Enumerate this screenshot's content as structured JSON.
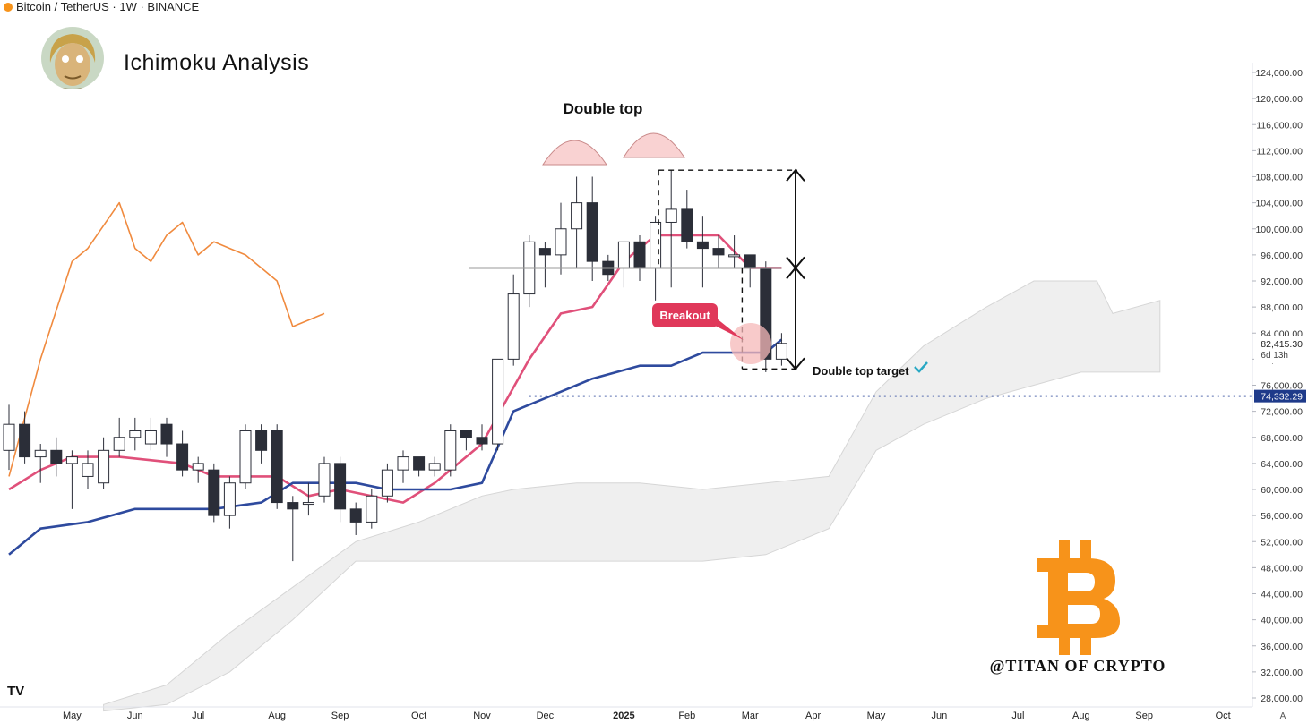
{
  "header": {
    "symbol_line": "Bitcoin / TetherUS · 1W · BINANCE"
  },
  "title": "Ichimoku Analysis",
  "watermark": {
    "handle": "@TITAN OF CRYPTO",
    "logo": "bitcoin-logo"
  },
  "tradingview_logo": "TV",
  "annotations": {
    "double_top": "Double top",
    "breakout": "Breakout",
    "target": "Double top target",
    "check_icon": "checkmark-icon"
  },
  "colors": {
    "tenkan": "#e0507a",
    "kijun": "#2e4a9e",
    "chikou": "#f08a3e",
    "cloud": "#efefef",
    "bear": "#2b2e38",
    "breakout_badge": "#e0385a",
    "btc_orange": "#f7931a",
    "price_badge": "#1e3a8a"
  },
  "chart_data": {
    "type": "candlestick",
    "timeframe": "1W",
    "exchange": "BINANCE",
    "ylim": [
      26000,
      126000
    ],
    "y_ticks": [
      "124,000.00",
      "120,000.00",
      "116,000.00",
      "112,000.00",
      "108,000.00",
      "104,000.00",
      "100,000.00",
      "96,000.00",
      "92,000.00",
      "88,000.00",
      "84,000.00",
      "80,000.00",
      "76,000.00",
      "72,000.00",
      "68,000.00",
      "64,000.00",
      "60,000.00",
      "56,000.00",
      "52,000.00",
      "48,000.00",
      "44,000.00",
      "40,000.00",
      "36,000.00",
      "32,000.00",
      "28,000.00"
    ],
    "x_labels": [
      {
        "label": "May",
        "week": 4
      },
      {
        "label": "Jun",
        "week": 8
      },
      {
        "label": "Jul",
        "week": 12
      },
      {
        "label": "Aug",
        "week": 17
      },
      {
        "label": "Sep",
        "week": 21
      },
      {
        "label": "Oct",
        "week": 26
      },
      {
        "label": "Nov",
        "week": 30
      },
      {
        "label": "Dec",
        "week": 34
      },
      {
        "label": "2025",
        "week": 39
      },
      {
        "label": "Feb",
        "week": 43
      },
      {
        "label": "Mar",
        "week": 47
      },
      {
        "label": "Apr",
        "week": 51
      },
      {
        "label": "May",
        "week": 55
      },
      {
        "label": "Jun",
        "week": 59
      },
      {
        "label": "Jul",
        "week": 64
      },
      {
        "label": "Aug",
        "week": 68
      },
      {
        "label": "Sep",
        "week": 72
      },
      {
        "label": "Oct",
        "week": 77
      }
    ],
    "current_price": "82,415.30",
    "countdown": "6d 13h",
    "level_price": "74,332.29",
    "candles": [
      [
        0,
        66000,
        73000,
        63000,
        70000
      ],
      [
        1,
        70000,
        72000,
        64000,
        65000
      ],
      [
        2,
        65000,
        67000,
        61000,
        66000
      ],
      [
        3,
        66000,
        68000,
        62000,
        64000
      ],
      [
        4,
        64000,
        66000,
        57000,
        65000
      ],
      [
        5,
        62000,
        66000,
        60000,
        64000
      ],
      [
        6,
        61000,
        68000,
        60000,
        66000
      ],
      [
        7,
        66000,
        71000,
        65000,
        68000
      ],
      [
        8,
        68000,
        71000,
        66000,
        69000
      ],
      [
        9,
        67000,
        71000,
        66000,
        69000
      ],
      [
        10,
        70000,
        71000,
        65000,
        67000
      ],
      [
        11,
        67000,
        69000,
        62000,
        63000
      ],
      [
        12,
        63000,
        65000,
        61000,
        64000
      ],
      [
        13,
        63000,
        64000,
        55000,
        56000
      ],
      [
        14,
        56000,
        62000,
        54000,
        61000
      ],
      [
        15,
        61000,
        70000,
        60000,
        69000
      ],
      [
        16,
        69000,
        70000,
        64000,
        66000
      ],
      [
        17,
        69000,
        70000,
        57000,
        58000
      ],
      [
        18,
        58000,
        59000,
        49000,
        57000
      ],
      [
        19,
        58000,
        61000,
        56000,
        58000
      ],
      [
        20,
        59000,
        65000,
        58000,
        64000
      ],
      [
        21,
        64000,
        65000,
        55000,
        57000
      ],
      [
        22,
        57000,
        58000,
        53000,
        55000
      ],
      [
        23,
        55000,
        60000,
        54000,
        59000
      ],
      [
        24,
        59000,
        64000,
        58000,
        63000
      ],
      [
        25,
        63000,
        66000,
        61000,
        65000
      ],
      [
        26,
        65000,
        65000,
        62000,
        63000
      ],
      [
        27,
        63000,
        65000,
        62000,
        64000
      ],
      [
        28,
        63000,
        70000,
        62000,
        69000
      ],
      [
        29,
        69000,
        69000,
        66000,
        68000
      ],
      [
        30,
        68000,
        70000,
        66000,
        67000
      ],
      [
        31,
        67000,
        80000,
        66000,
        80000
      ],
      [
        32,
        80000,
        93000,
        79000,
        90000
      ],
      [
        33,
        90000,
        99000,
        88000,
        98000
      ],
      [
        34,
        97000,
        98000,
        91000,
        96000
      ],
      [
        35,
        96000,
        104000,
        93000,
        100000
      ],
      [
        36,
        100000,
        108000,
        94000,
        104000
      ],
      [
        37,
        104000,
        108000,
        92000,
        95000
      ],
      [
        38,
        95000,
        96000,
        92000,
        93000
      ],
      [
        39,
        94000,
        98000,
        91000,
        98000
      ],
      [
        40,
        98000,
        99000,
        92000,
        94000
      ],
      [
        41,
        94000,
        102000,
        89000,
        101000
      ],
      [
        42,
        101000,
        109000,
        91000,
        103000
      ],
      [
        43,
        103000,
        106000,
        97000,
        98000
      ],
      [
        44,
        98000,
        102000,
        91000,
        97000
      ],
      [
        45,
        97000,
        99000,
        94000,
        96000
      ],
      [
        46,
        96000,
        99000,
        94000,
        96000
      ],
      [
        47,
        96000,
        96000,
        91000,
        94000
      ],
      [
        48,
        94000,
        95000,
        78000,
        80000
      ],
      [
        49,
        80000,
        84000,
        79000,
        82415
      ]
    ],
    "series": [
      {
        "name": "Tenkan",
        "points": [
          [
            0,
            60000
          ],
          [
            2,
            63000
          ],
          [
            4,
            65000
          ],
          [
            7,
            65000
          ],
          [
            11,
            64000
          ],
          [
            13,
            62000
          ],
          [
            17,
            62000
          ],
          [
            19,
            59000
          ],
          [
            21,
            60000
          ],
          [
            25,
            58000
          ],
          [
            27,
            61000
          ],
          [
            30,
            67000
          ],
          [
            33,
            80000
          ],
          [
            35,
            87000
          ],
          [
            37,
            88000
          ],
          [
            39,
            95000
          ],
          [
            41,
            99000
          ],
          [
            45,
            99000
          ],
          [
            47,
            94000
          ],
          [
            49,
            94000
          ]
        ]
      },
      {
        "name": "Kijun",
        "points": [
          [
            0,
            50000
          ],
          [
            2,
            54000
          ],
          [
            5,
            55000
          ],
          [
            8,
            57000
          ],
          [
            13,
            57000
          ],
          [
            16,
            58000
          ],
          [
            18,
            61000
          ],
          [
            22,
            61000
          ],
          [
            24,
            60000
          ],
          [
            28,
            60000
          ],
          [
            30,
            61000
          ],
          [
            32,
            72000
          ],
          [
            34,
            74000
          ],
          [
            37,
            77000
          ],
          [
            40,
            79000
          ],
          [
            42,
            79000
          ],
          [
            44,
            81000
          ],
          [
            47,
            81000
          ],
          [
            48,
            81000
          ],
          [
            49,
            83000
          ]
        ]
      },
      {
        "name": "Chikou",
        "points": [
          [
            0,
            62000
          ],
          [
            2,
            80000
          ],
          [
            4,
            95000
          ],
          [
            5,
            97000
          ],
          [
            7,
            104000
          ],
          [
            8,
            97000
          ],
          [
            9,
            95000
          ],
          [
            10,
            99000
          ],
          [
            11,
            101000
          ],
          [
            12,
            96000
          ],
          [
            13,
            98000
          ],
          [
            14,
            97000
          ],
          [
            15,
            96000
          ],
          [
            16,
            94000
          ],
          [
            17,
            92000
          ],
          [
            18,
            85000
          ],
          [
            19,
            86000
          ],
          [
            20,
            87000
          ]
        ]
      }
    ],
    "cloud": {
      "upper": [
        [
          6,
          27000
        ],
        [
          10,
          30000
        ],
        [
          14,
          38000
        ],
        [
          18,
          45000
        ],
        [
          22,
          52000
        ],
        [
          26,
          55000
        ],
        [
          30,
          59000
        ],
        [
          32,
          60000
        ],
        [
          36,
          61000
        ],
        [
          40,
          61000
        ],
        [
          44,
          60000
        ],
        [
          48,
          61000
        ],
        [
          52,
          62000
        ],
        [
          55,
          75000
        ],
        [
          58,
          82000
        ],
        [
          62,
          88000
        ],
        [
          65,
          92000
        ],
        [
          69,
          92000
        ],
        [
          70,
          87000
        ],
        [
          73,
          89000
        ]
      ],
      "lower": [
        [
          6,
          26000
        ],
        [
          10,
          27000
        ],
        [
          14,
          32000
        ],
        [
          18,
          40000
        ],
        [
          22,
          49000
        ],
        [
          26,
          49000
        ],
        [
          30,
          49000
        ],
        [
          36,
          49000
        ],
        [
          40,
          49000
        ],
        [
          44,
          49000
        ],
        [
          48,
          50000
        ],
        [
          52,
          54000
        ],
        [
          55,
          66000
        ],
        [
          58,
          70000
        ],
        [
          62,
          74000
        ],
        [
          65,
          76000
        ],
        [
          68,
          78000
        ],
        [
          73,
          78000
        ]
      ]
    },
    "levels": {
      "neckline": 94000,
      "top": 109000,
      "target": 78500,
      "dotted": 74332
    },
    "x_range": [
      0,
      80
    ]
  }
}
